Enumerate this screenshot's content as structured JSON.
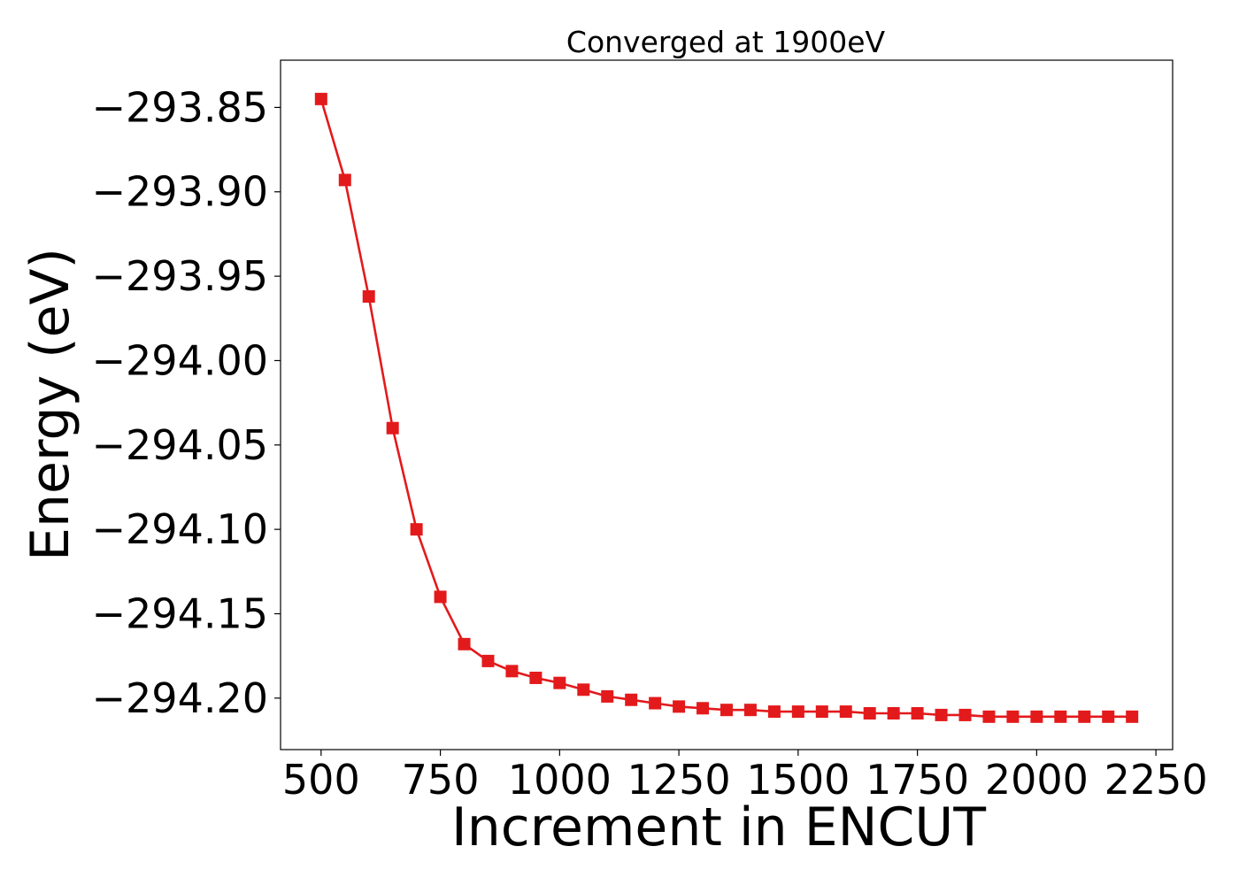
{
  "chart_data": {
    "type": "line",
    "title": "Converged at 1900eV",
    "xlabel": "Increment in ENCUT",
    "ylabel": "Energy (eV)",
    "xlim": [
      415,
      2285
    ],
    "ylim": [
      -294.2305,
      -293.822
    ],
    "xticks": [
      500,
      750,
      1000,
      1250,
      1500,
      1750,
      2000,
      2250
    ],
    "xtick_labels": [
      "500",
      "750",
      "1000",
      "1250",
      "1500",
      "1750",
      "2000",
      "2250"
    ],
    "yticks": [
      -293.85,
      -293.9,
      -293.95,
      -294.0,
      -294.05,
      -294.1,
      -294.15,
      -294.2
    ],
    "ytick_labels": [
      "−293.85",
      "−293.90",
      "−293.95",
      "−294.00",
      "−294.05",
      "−294.10",
      "−294.15",
      "−294.20"
    ],
    "grid": false,
    "legend": "none",
    "series": [
      {
        "color": "#e31a1c",
        "marker": "square",
        "x": [
          500,
          550,
          600,
          650,
          700,
          750,
          800,
          850,
          900,
          950,
          1000,
          1050,
          1100,
          1150,
          1200,
          1250,
          1300,
          1350,
          1400,
          1450,
          1500,
          1550,
          1600,
          1650,
          1700,
          1750,
          1800,
          1850,
          1900,
          1950,
          2000,
          2050,
          2100,
          2150,
          2200
        ],
        "y": [
          -293.845,
          -293.893,
          -293.962,
          -294.04,
          -294.1,
          -294.14,
          -294.168,
          -294.178,
          -294.184,
          -294.188,
          -294.191,
          -294.195,
          -294.199,
          -294.201,
          -294.203,
          -294.205,
          -294.206,
          -294.207,
          -294.207,
          -294.208,
          -294.208,
          -294.208,
          -294.208,
          -294.209,
          -294.209,
          -294.209,
          -294.21,
          -294.21,
          -294.211,
          -294.211,
          -294.211,
          -294.211,
          -294.211,
          -294.211,
          -294.211
        ]
      }
    ]
  }
}
